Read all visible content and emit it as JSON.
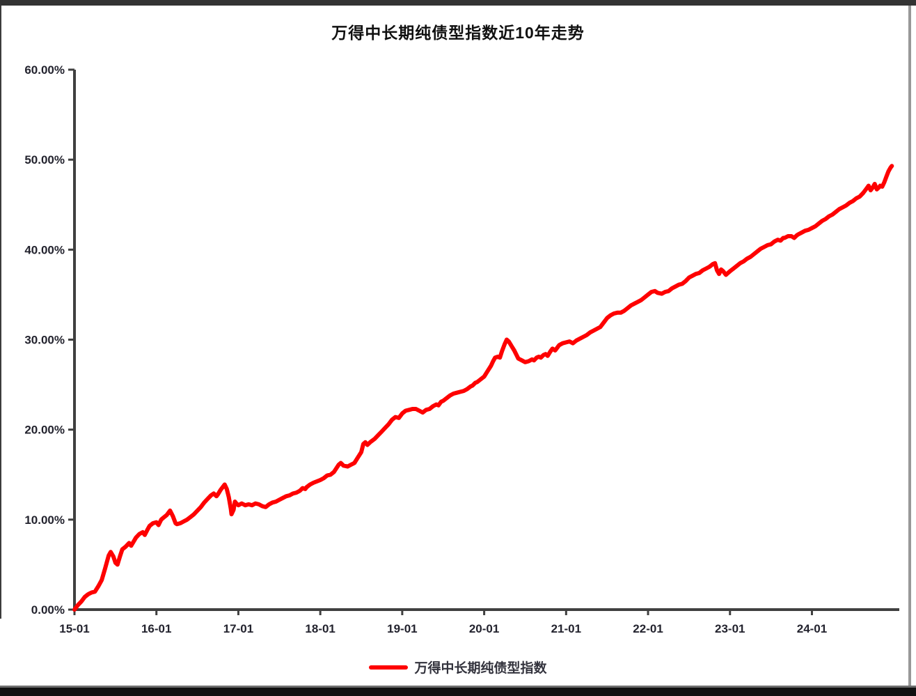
{
  "chart": {
    "title": "万得中长期纯债型指数近10年走势",
    "legend_label": "万得中长期纯债型指数",
    "line_color": "#FE0000",
    "axis_color": "#404040",
    "tick_text_color": "#23232e"
  },
  "chart_data": {
    "type": "line",
    "title": "万得中长期纯债型指数近10年走势",
    "xlabel": "",
    "ylabel": "",
    "grid": false,
    "legend_position": "bottom",
    "ylim": [
      0,
      60
    ],
    "xlim_months_since_2015_01": [
      0,
      121
    ],
    "y_ticks": [
      {
        "v": 0,
        "label": "0.00%"
      },
      {
        "v": 10,
        "label": "10.00%"
      },
      {
        "v": 20,
        "label": "20.00%"
      },
      {
        "v": 30,
        "label": "30.00%"
      },
      {
        "v": 40,
        "label": "40.00%"
      },
      {
        "v": 50,
        "label": "50.00%"
      },
      {
        "v": 60,
        "label": "60.00%"
      }
    ],
    "x_ticks": [
      {
        "t": 0,
        "label": "15-01"
      },
      {
        "t": 12,
        "label": "16-01"
      },
      {
        "t": 24,
        "label": "17-01"
      },
      {
        "t": 36,
        "label": "18-01"
      },
      {
        "t": 48,
        "label": "19-01"
      },
      {
        "t": 60,
        "label": "20-01"
      },
      {
        "t": 72,
        "label": "21-01"
      },
      {
        "t": 84,
        "label": "22-01"
      },
      {
        "t": 96,
        "label": "23-01"
      },
      {
        "t": 108,
        "label": "24-01"
      }
    ],
    "series": [
      {
        "name": "万得中长期纯债型指数",
        "color": "#FE0000",
        "x_unit": "months since 2015-01",
        "y_unit": "cumulative return %",
        "points": [
          [
            0,
            0.0
          ],
          [
            0.5,
            0.5
          ],
          [
            1,
            0.9
          ],
          [
            1.5,
            1.4
          ],
          [
            2,
            1.7
          ],
          [
            2.5,
            1.9
          ],
          [
            3,
            2.0
          ],
          [
            3.5,
            2.6
          ],
          [
            4,
            3.3
          ],
          [
            4.5,
            4.6
          ],
          [
            5,
            6.0
          ],
          [
            5.3,
            6.4
          ],
          [
            5.7,
            5.9
          ],
          [
            6,
            5.2
          ],
          [
            6.3,
            5.0
          ],
          [
            6.7,
            6.0
          ],
          [
            7,
            6.7
          ],
          [
            7.5,
            7.0
          ],
          [
            8,
            7.4
          ],
          [
            8.3,
            7.1
          ],
          [
            8.7,
            7.6
          ],
          [
            9,
            8.0
          ],
          [
            9.5,
            8.4
          ],
          [
            10,
            8.6
          ],
          [
            10.3,
            8.3
          ],
          [
            10.7,
            8.9
          ],
          [
            11,
            9.3
          ],
          [
            11.5,
            9.6
          ],
          [
            12,
            9.7
          ],
          [
            12.3,
            9.4
          ],
          [
            12.7,
            10.0
          ],
          [
            13,
            10.2
          ],
          [
            13.5,
            10.5
          ],
          [
            14,
            11.0
          ],
          [
            14.4,
            10.4
          ],
          [
            14.8,
            9.6
          ],
          [
            15,
            9.5
          ],
          [
            15.5,
            9.6
          ],
          [
            16,
            9.8
          ],
          [
            16.5,
            10.0
          ],
          [
            17,
            10.3
          ],
          [
            17.5,
            10.6
          ],
          [
            18,
            11.0
          ],
          [
            18.5,
            11.4
          ],
          [
            19,
            11.9
          ],
          [
            19.5,
            12.3
          ],
          [
            20,
            12.7
          ],
          [
            20.4,
            12.9
          ],
          [
            20.8,
            12.6
          ],
          [
            21,
            12.8
          ],
          [
            21.4,
            13.3
          ],
          [
            21.8,
            13.7
          ],
          [
            22,
            13.9
          ],
          [
            22.3,
            13.4
          ],
          [
            22.6,
            12.5
          ],
          [
            22.9,
            11.2
          ],
          [
            23,
            10.6
          ],
          [
            23.3,
            11.1
          ],
          [
            23.5,
            12.0
          ],
          [
            23.7,
            11.8
          ],
          [
            24,
            11.6
          ],
          [
            24.5,
            11.8
          ],
          [
            25,
            11.6
          ],
          [
            25.5,
            11.7
          ],
          [
            26,
            11.6
          ],
          [
            26.5,
            11.8
          ],
          [
            27,
            11.7
          ],
          [
            27.5,
            11.5
          ],
          [
            28,
            11.4
          ],
          [
            28.5,
            11.7
          ],
          [
            29,
            11.9
          ],
          [
            29.5,
            12.0
          ],
          [
            30,
            12.2
          ],
          [
            30.5,
            12.4
          ],
          [
            31,
            12.6
          ],
          [
            31.5,
            12.7
          ],
          [
            32,
            12.9
          ],
          [
            32.5,
            13.0
          ],
          [
            33,
            13.2
          ],
          [
            33.4,
            13.5
          ],
          [
            33.8,
            13.4
          ],
          [
            34,
            13.6
          ],
          [
            34.5,
            13.9
          ],
          [
            35,
            14.1
          ],
          [
            36,
            14.4
          ],
          [
            36.5,
            14.6
          ],
          [
            37,
            14.9
          ],
          [
            37.5,
            15.0
          ],
          [
            38,
            15.3
          ],
          [
            38.7,
            16.1
          ],
          [
            39,
            16.3
          ],
          [
            39.4,
            16.0
          ],
          [
            40,
            15.9
          ],
          [
            40.5,
            16.1
          ],
          [
            41,
            16.3
          ],
          [
            41.5,
            16.9
          ],
          [
            42,
            17.5
          ],
          [
            42.3,
            18.4
          ],
          [
            42.6,
            18.6
          ],
          [
            42.9,
            18.3
          ],
          [
            43.3,
            18.6
          ],
          [
            44,
            19.0
          ],
          [
            44.5,
            19.4
          ],
          [
            45,
            19.8
          ],
          [
            45.5,
            20.2
          ],
          [
            46,
            20.6
          ],
          [
            46.5,
            21.1
          ],
          [
            47,
            21.4
          ],
          [
            47.5,
            21.3
          ],
          [
            48,
            21.8
          ],
          [
            48.5,
            22.1
          ],
          [
            49,
            22.2
          ],
          [
            49.5,
            22.3
          ],
          [
            50,
            22.3
          ],
          [
            50.5,
            22.1
          ],
          [
            51,
            21.9
          ],
          [
            51.5,
            22.2
          ],
          [
            52,
            22.3
          ],
          [
            52.5,
            22.6
          ],
          [
            53,
            22.8
          ],
          [
            53.3,
            22.7
          ],
          [
            53.7,
            23.1
          ],
          [
            54,
            23.2
          ],
          [
            54.5,
            23.5
          ],
          [
            55,
            23.8
          ],
          [
            55.5,
            24.0
          ],
          [
            56,
            24.1
          ],
          [
            56.5,
            24.2
          ],
          [
            57,
            24.3
          ],
          [
            57.5,
            24.5
          ],
          [
            58,
            24.8
          ],
          [
            58.3,
            24.9
          ],
          [
            58.7,
            25.2
          ],
          [
            59,
            25.3
          ],
          [
            59.5,
            25.6
          ],
          [
            60,
            25.9
          ],
          [
            60.5,
            26.5
          ],
          [
            61,
            27.1
          ],
          [
            61.3,
            27.6
          ],
          [
            61.6,
            28.0
          ],
          [
            62,
            28.1
          ],
          [
            62.3,
            28.0
          ],
          [
            62.6,
            28.7
          ],
          [
            63,
            29.5
          ],
          [
            63.3,
            30.0
          ],
          [
            63.6,
            29.8
          ],
          [
            64,
            29.3
          ],
          [
            64.4,
            28.8
          ],
          [
            64.8,
            28.2
          ],
          [
            65,
            27.9
          ],
          [
            65.5,
            27.7
          ],
          [
            66,
            27.5
          ],
          [
            66.5,
            27.6
          ],
          [
            67,
            27.8
          ],
          [
            67.3,
            27.7
          ],
          [
            67.7,
            28.0
          ],
          [
            68,
            28.1
          ],
          [
            68.3,
            28.0
          ],
          [
            68.7,
            28.3
          ],
          [
            69,
            28.4
          ],
          [
            69.3,
            28.2
          ],
          [
            69.7,
            28.7
          ],
          [
            70,
            29.0
          ],
          [
            70.4,
            28.8
          ],
          [
            70.8,
            29.2
          ],
          [
            71,
            29.4
          ],
          [
            71.5,
            29.6
          ],
          [
            72,
            29.7
          ],
          [
            72.5,
            29.8
          ],
          [
            73,
            29.6
          ],
          [
            73.5,
            29.9
          ],
          [
            74,
            30.1
          ],
          [
            74.5,
            30.3
          ],
          [
            75,
            30.5
          ],
          [
            75.5,
            30.8
          ],
          [
            76,
            31.0
          ],
          [
            76.5,
            31.2
          ],
          [
            77,
            31.4
          ],
          [
            77.5,
            31.9
          ],
          [
            78,
            32.4
          ],
          [
            78.5,
            32.7
          ],
          [
            79,
            32.9
          ],
          [
            79.5,
            33.0
          ],
          [
            80,
            33.0
          ],
          [
            80.5,
            33.2
          ],
          [
            81,
            33.5
          ],
          [
            81.5,
            33.8
          ],
          [
            82,
            34.0
          ],
          [
            82.5,
            34.2
          ],
          [
            83,
            34.4
          ],
          [
            83.5,
            34.7
          ],
          [
            84,
            35.0
          ],
          [
            84.5,
            35.3
          ],
          [
            85,
            35.4
          ],
          [
            85.4,
            35.2
          ],
          [
            86,
            35.1
          ],
          [
            86.5,
            35.3
          ],
          [
            87,
            35.4
          ],
          [
            87.5,
            35.7
          ],
          [
            88,
            35.9
          ],
          [
            88.5,
            36.1
          ],
          [
            89,
            36.2
          ],
          [
            89.5,
            36.5
          ],
          [
            90,
            36.9
          ],
          [
            90.5,
            37.1
          ],
          [
            91,
            37.3
          ],
          [
            91.5,
            37.4
          ],
          [
            92,
            37.7
          ],
          [
            92.5,
            37.9
          ],
          [
            93,
            38.1
          ],
          [
            93.5,
            38.4
          ],
          [
            93.8,
            38.5
          ],
          [
            94.1,
            37.7
          ],
          [
            94.4,
            37.3
          ],
          [
            94.7,
            37.8
          ],
          [
            95,
            37.6
          ],
          [
            95.4,
            37.2
          ],
          [
            95.7,
            37.4
          ],
          [
            96,
            37.6
          ],
          [
            96.5,
            37.9
          ],
          [
            97,
            38.2
          ],
          [
            97.5,
            38.5
          ],
          [
            98,
            38.7
          ],
          [
            98.5,
            39.0
          ],
          [
            99,
            39.2
          ],
          [
            99.5,
            39.5
          ],
          [
            100,
            39.8
          ],
          [
            100.5,
            40.1
          ],
          [
            101,
            40.3
          ],
          [
            101.5,
            40.5
          ],
          [
            102,
            40.6
          ],
          [
            102.5,
            40.9
          ],
          [
            103,
            41.1
          ],
          [
            103.4,
            41.0
          ],
          [
            103.8,
            41.3
          ],
          [
            104,
            41.3
          ],
          [
            104.5,
            41.5
          ],
          [
            105,
            41.5
          ],
          [
            105.4,
            41.3
          ],
          [
            105.8,
            41.6
          ],
          [
            106,
            41.7
          ],
          [
            106.5,
            41.9
          ],
          [
            107,
            42.1
          ],
          [
            107.5,
            42.2
          ],
          [
            108,
            42.4
          ],
          [
            108.5,
            42.6
          ],
          [
            109,
            42.9
          ],
          [
            109.5,
            43.2
          ],
          [
            110,
            43.4
          ],
          [
            110.5,
            43.7
          ],
          [
            111,
            43.9
          ],
          [
            111.5,
            44.2
          ],
          [
            112,
            44.5
          ],
          [
            112.5,
            44.7
          ],
          [
            113,
            44.9
          ],
          [
            113.5,
            45.2
          ],
          [
            114,
            45.4
          ],
          [
            114.5,
            45.7
          ],
          [
            115,
            45.9
          ],
          [
            115.5,
            46.3
          ],
          [
            116,
            46.8
          ],
          [
            116.3,
            47.1
          ],
          [
            116.6,
            46.6
          ],
          [
            116.9,
            46.9
          ],
          [
            117.2,
            47.3
          ],
          [
            117.5,
            46.7
          ],
          [
            117.8,
            46.9
          ],
          [
            118,
            47.1
          ],
          [
            118.3,
            47.0
          ],
          [
            118.6,
            47.5
          ],
          [
            118.9,
            48.1
          ],
          [
            119.2,
            48.7
          ],
          [
            119.5,
            49.1
          ],
          [
            119.7,
            49.3
          ]
        ]
      }
    ]
  }
}
